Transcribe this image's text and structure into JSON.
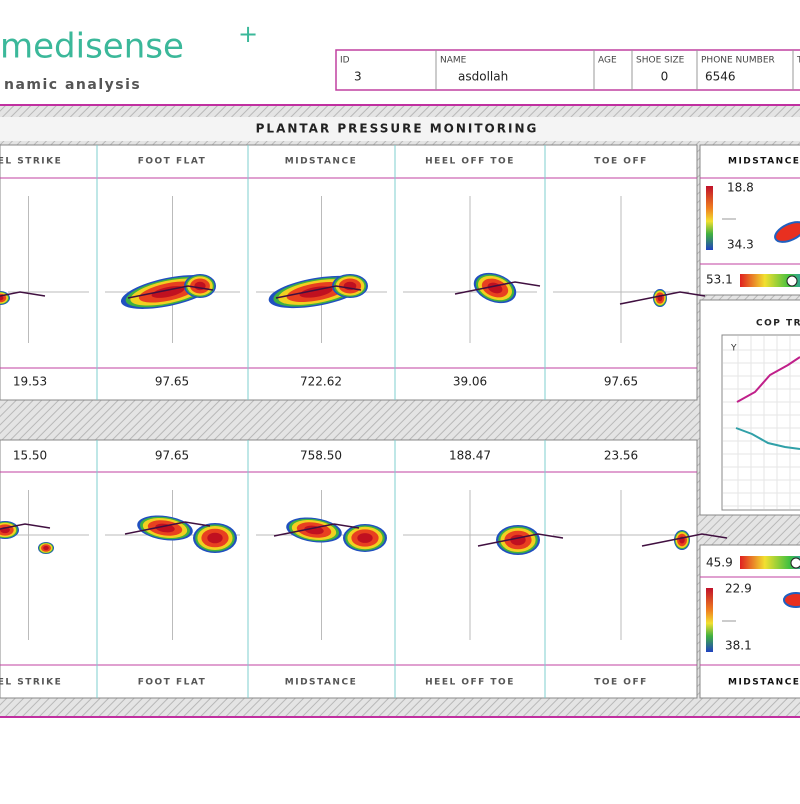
{
  "logo": {
    "name": "medisense",
    "plus": "+",
    "subtitle": "namic analysis"
  },
  "patient": {
    "fields": [
      {
        "label": "ID",
        "value": "3"
      },
      {
        "label": "NAME",
        "value": "asdollah"
      },
      {
        "label": "AGE"
      },
      {
        "label": "SHOE SIZE",
        "value": "0"
      },
      {
        "label": "PHONE NUMBER",
        "value": "6546"
      },
      {
        "label": "T"
      }
    ]
  },
  "panel_title": "PLANTAR PRESSURE MONITORING",
  "top_row": {
    "phases": [
      "EL STRIKE",
      "FOOT FLAT",
      "MIDSTANCE",
      "HEEL OFF TOE",
      "TOE OFF"
    ],
    "values": [
      "19.53",
      "97.65",
      "722.62",
      "39.06",
      "97.65"
    ]
  },
  "bottom_row": {
    "phases": [
      "EL STRIKE",
      "FOOT FLAT",
      "MIDSTANCE",
      "HEEL OFF TOE",
      "TOE OFF"
    ],
    "values": [
      "15.50",
      "97.65",
      "758.50",
      "188.47",
      "23.56"
    ]
  },
  "side": {
    "top_header": "MIDSTANCE",
    "top_scale": [
      "18.8",
      "34.3"
    ],
    "top_reading": "53.1",
    "cop_title": "COP TR",
    "cop_axis": "Y",
    "bottom_reading": "45.9",
    "bottom_scale": [
      "22.9",
      "38.1"
    ],
    "bottom_header": "MIDSTANCE"
  }
}
